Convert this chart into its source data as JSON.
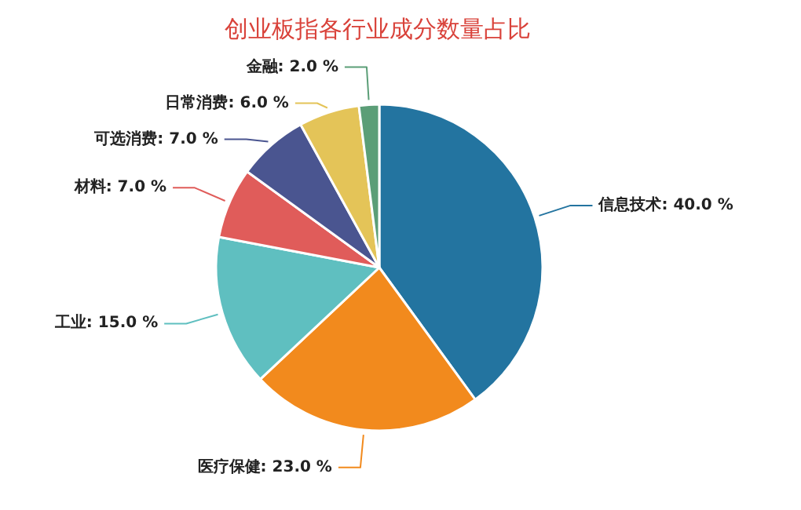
{
  "chart_data": {
    "type": "pie",
    "title": "创业板指各行业成分数量占比",
    "categories": [
      "信息技术",
      "医疗保健",
      "工业",
      "材料",
      "可选消费",
      "日常消费",
      "金融"
    ],
    "values": [
      40,
      23,
      15,
      7,
      7,
      6,
      2
    ],
    "colors": [
      "#2374a0",
      "#f28a1d",
      "#5fbfc0",
      "#e05c5a",
      "#4a5590",
      "#e4c458",
      "#5b9e77"
    ],
    "value_labels": [
      "40.0 %",
      "23.0 %",
      "15.0 %",
      "7.0 %",
      "7.0 %",
      "6.0 %",
      "2.0 %"
    ],
    "legend": false
  }
}
